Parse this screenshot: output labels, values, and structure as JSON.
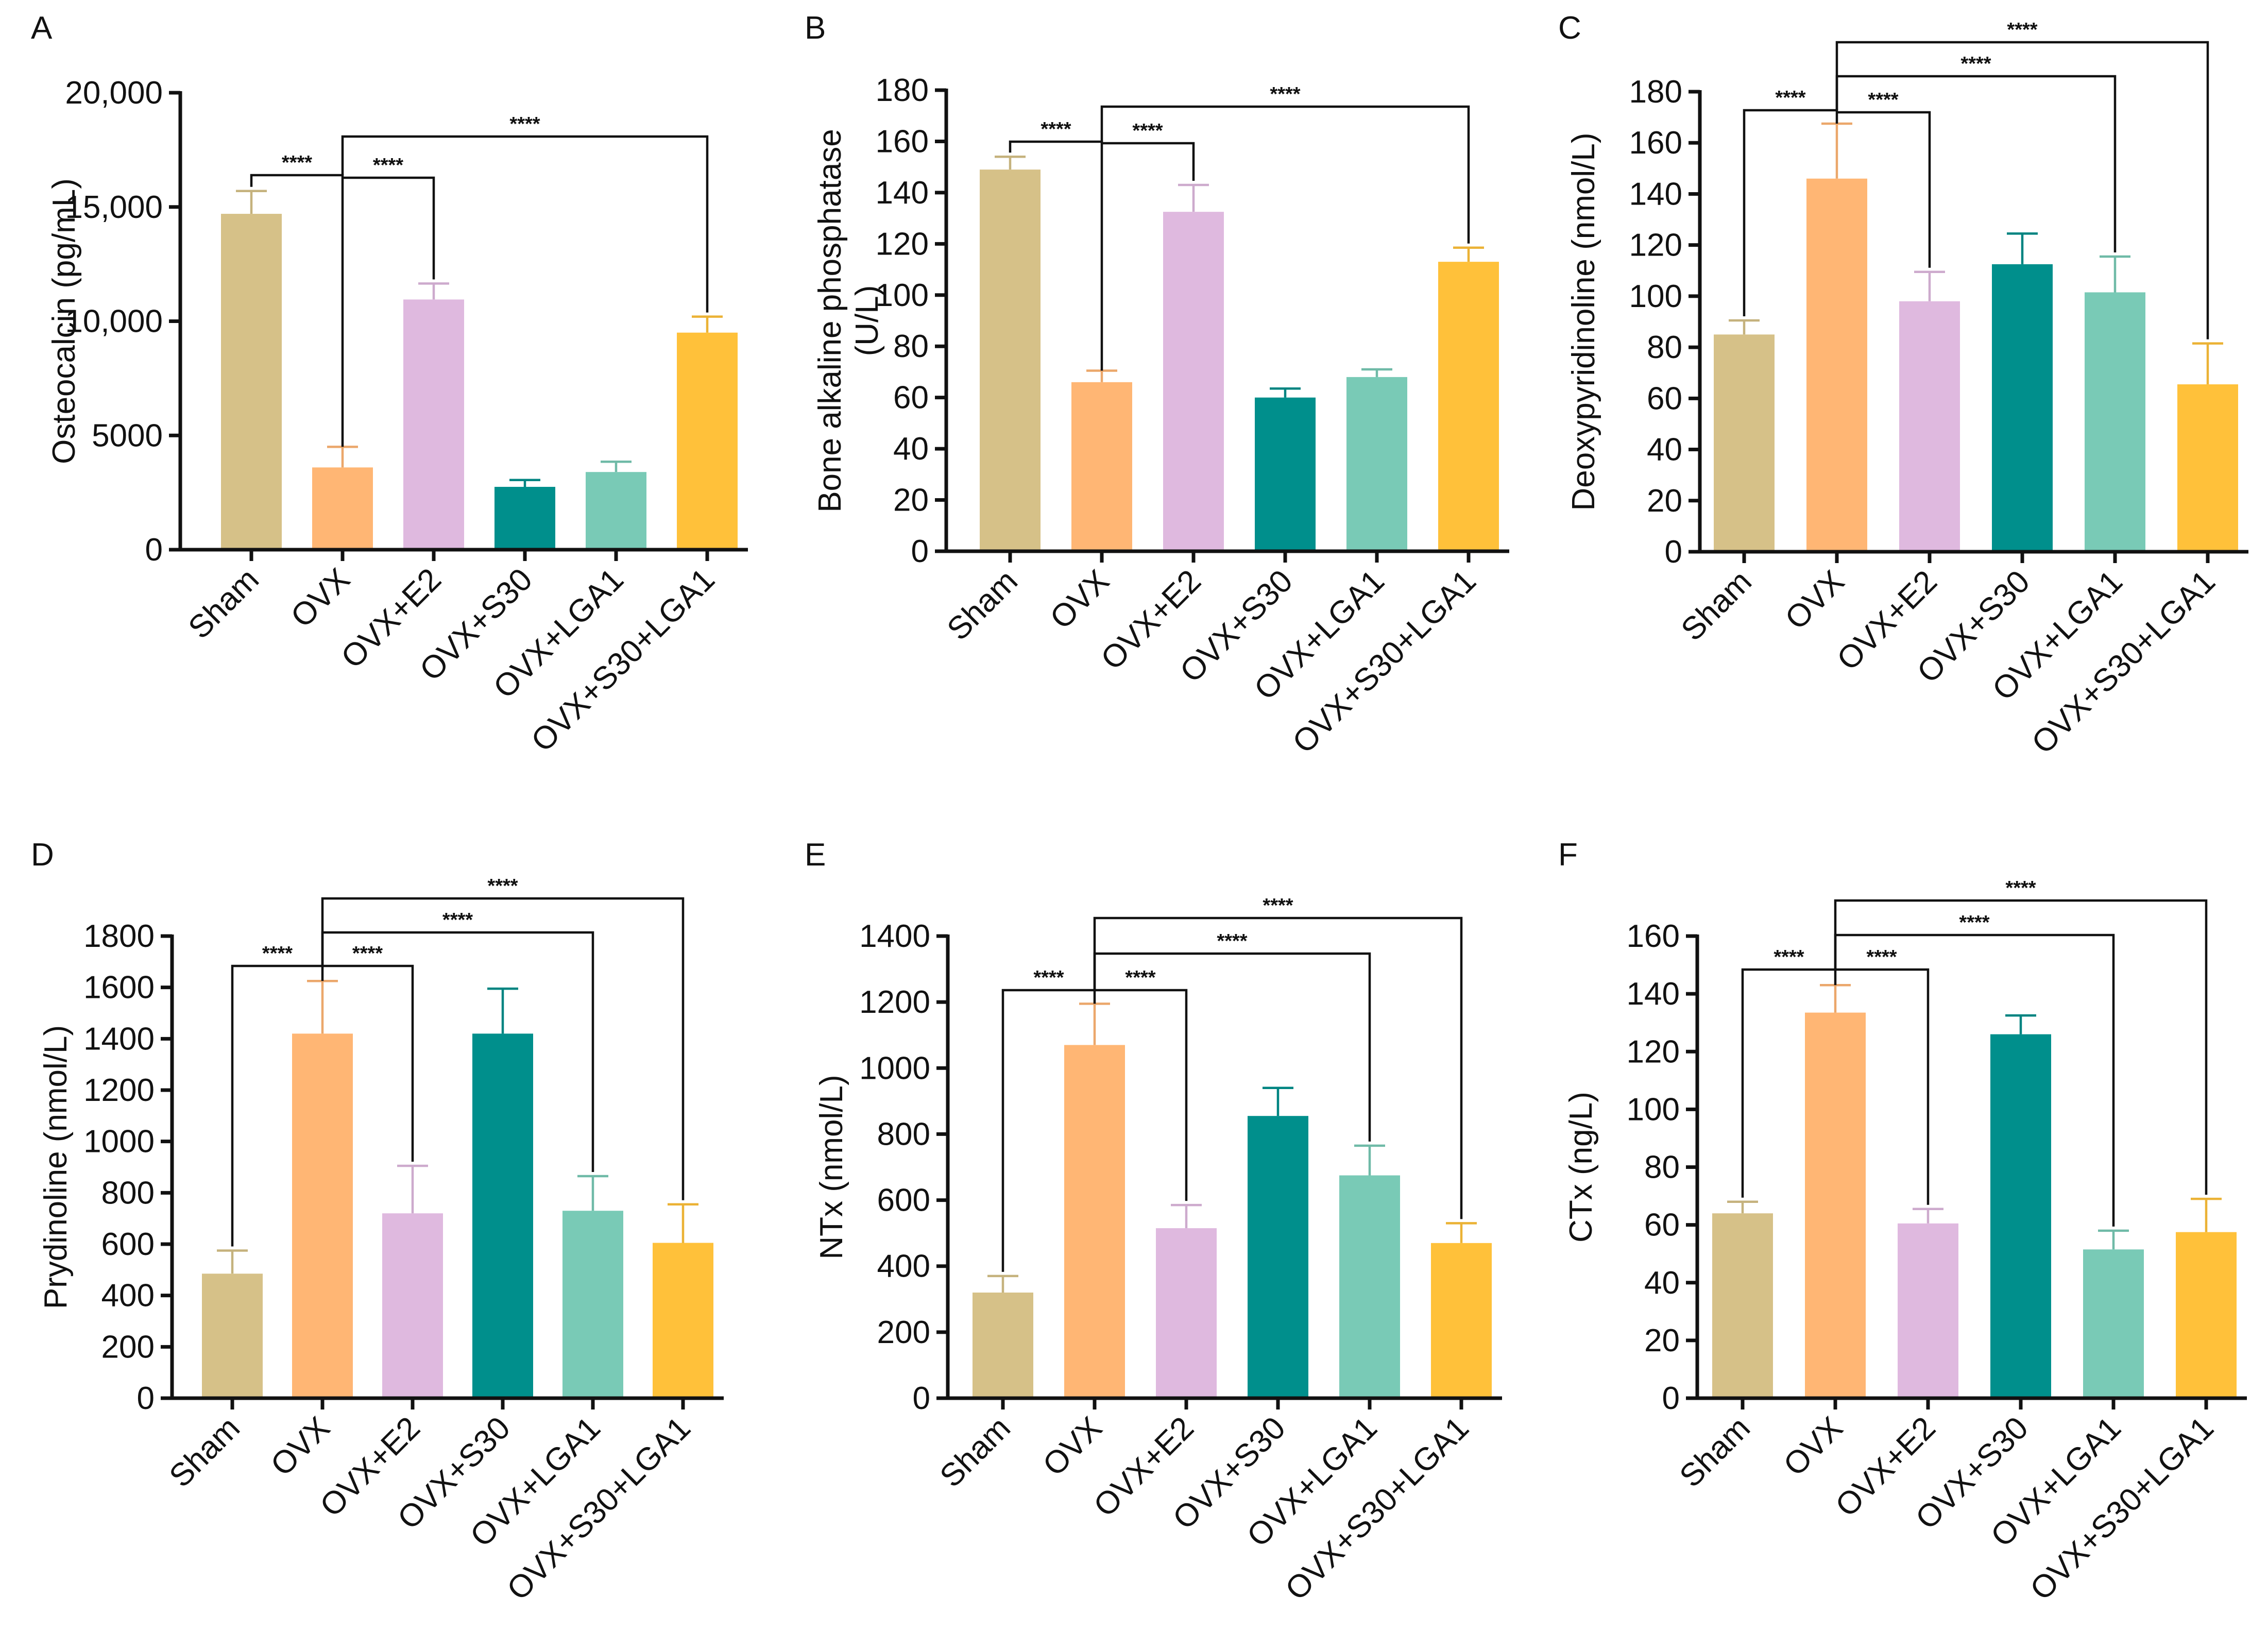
{
  "figure": {
    "categories": [
      "Sham",
      "OVX",
      "OVX+E2",
      "OVX+S30",
      "OVX+LGA1",
      "OVX+S30+LGA1"
    ],
    "bar_colors": [
      "#d6c188",
      "#ffb674",
      "#dfb9df",
      "#008f8c",
      "#79cab6",
      "#ffc13a"
    ],
    "significance_label": "****"
  },
  "chart_data": [
    {
      "panel": "A",
      "type": "bar",
      "ylabel": "Osteocalcin (pg/mL)",
      "ylim": [
        0,
        20000
      ],
      "yticks": [
        0,
        5000,
        10000,
        15000,
        20000
      ],
      "ytick_labels": [
        "0",
        "5000",
        "10,000",
        "15,000",
        "20,000"
      ],
      "categories": [
        "Sham",
        "OVX",
        "OVX+E2",
        "OVX+S30",
        "OVX+LGA1",
        "OVX+S30+LGA1"
      ],
      "values": [
        14700,
        3600,
        10950,
        2750,
        3400,
        9500
      ],
      "errors": [
        1000,
        900,
        700,
        300,
        450,
        700
      ],
      "significance": [
        {
          "from": 1,
          "to": 0,
          "label": "****"
        },
        {
          "from": 1,
          "to": 2,
          "label": "****"
        },
        {
          "from": 1,
          "to": 5,
          "label": "****"
        }
      ]
    },
    {
      "panel": "B",
      "type": "bar",
      "ylabel": [
        "Bone alkaline phosphatase",
        "(U/L)"
      ],
      "ylim": [
        0,
        180
      ],
      "yticks": [
        0,
        20,
        40,
        60,
        80,
        100,
        120,
        140,
        160,
        180
      ],
      "ytick_labels": [
        "0",
        "20",
        "40",
        "60",
        "80",
        "100",
        "120",
        "140",
        "160",
        "180"
      ],
      "categories": [
        "Sham",
        "OVX",
        "OVX+E2",
        "OVX+S30",
        "OVX+LGA1",
        "OVX+S30+LGA1"
      ],
      "values": [
        149,
        66,
        132.5,
        60,
        68,
        113
      ],
      "errors": [
        5,
        4.5,
        10.5,
        3.5,
        3,
        5.5
      ],
      "significance": [
        {
          "from": 1,
          "to": 0,
          "label": "****"
        },
        {
          "from": 1,
          "to": 2,
          "label": "****"
        },
        {
          "from": 1,
          "to": 5,
          "label": "****"
        }
      ]
    },
    {
      "panel": "C",
      "type": "bar",
      "ylabel": "Deoxypyridinoline (nmol/L)",
      "ylim": [
        0,
        180
      ],
      "yticks": [
        0,
        20,
        40,
        60,
        80,
        100,
        120,
        140,
        160,
        180
      ],
      "ytick_labels": [
        "0",
        "20",
        "40",
        "60",
        "80",
        "100",
        "120",
        "140",
        "160",
        "180"
      ],
      "categories": [
        "Sham",
        "OVX",
        "OVX+E2",
        "OVX+S30",
        "OVX+LGA1",
        "OVX+S30+LGA1"
      ],
      "values": [
        85,
        146,
        98,
        112.5,
        101.5,
        65.5
      ],
      "errors": [
        5.5,
        21.5,
        11.5,
        12,
        14,
        16
      ],
      "significance": [
        {
          "from": 1,
          "to": 0,
          "label": "****"
        },
        {
          "from": 1,
          "to": 2,
          "label": "****"
        },
        {
          "from": 1,
          "to": 4,
          "label": "****"
        },
        {
          "from": 1,
          "to": 5,
          "label": "****"
        }
      ]
    },
    {
      "panel": "D",
      "type": "bar",
      "ylabel": "Prydinoline (nmol/L)",
      "ylim": [
        0,
        1800
      ],
      "yticks": [
        0,
        200,
        400,
        600,
        800,
        1000,
        1200,
        1400,
        1600,
        1800
      ],
      "ytick_labels": [
        "0",
        "200",
        "400",
        "600",
        "800",
        "1000",
        "1200",
        "1400",
        "1600",
        "1800"
      ],
      "categories": [
        "Sham",
        "OVX",
        "OVX+E2",
        "OVX+S30",
        "OVX+LGA1",
        "OVX+S30+LGA1"
      ],
      "values": [
        485,
        1420,
        720,
        1420,
        730,
        605
      ],
      "errors": [
        90,
        205,
        185,
        175,
        135,
        150
      ],
      "significance": [
        {
          "from": 1,
          "to": 0,
          "label": "****"
        },
        {
          "from": 1,
          "to": 2,
          "label": "****"
        },
        {
          "from": 1,
          "to": 4,
          "label": "****"
        },
        {
          "from": 1,
          "to": 5,
          "label": "****"
        }
      ]
    },
    {
      "panel": "E",
      "type": "bar",
      "ylabel": "NTx (nmol/L)",
      "ylim": [
        0,
        1400
      ],
      "yticks": [
        0,
        200,
        400,
        600,
        800,
        1000,
        1200,
        1400
      ],
      "ytick_labels": [
        "0",
        "200",
        "400",
        "600",
        "800",
        "1000",
        "1200",
        "1400"
      ],
      "categories": [
        "Sham",
        "OVX",
        "OVX+E2",
        "OVX+S30",
        "OVX+LGA1",
        "OVX+S30+LGA1"
      ],
      "values": [
        320,
        1070,
        515,
        855,
        675,
        470
      ],
      "errors": [
        50,
        125,
        70,
        85,
        90,
        60
      ],
      "significance": [
        {
          "from": 1,
          "to": 0,
          "label": "****"
        },
        {
          "from": 1,
          "to": 2,
          "label": "****"
        },
        {
          "from": 1,
          "to": 4,
          "label": "****"
        },
        {
          "from": 1,
          "to": 5,
          "label": "****"
        }
      ]
    },
    {
      "panel": "F",
      "type": "bar",
      "ylabel": "CTx (ng/L)",
      "ylim": [
        0,
        160
      ],
      "yticks": [
        0,
        20,
        40,
        60,
        80,
        100,
        120,
        140,
        160
      ],
      "ytick_labels": [
        "0",
        "20",
        "40",
        "60",
        "80",
        "100",
        "120",
        "140",
        "160"
      ],
      "categories": [
        "Sham",
        "OVX",
        "OVX+E2",
        "OVX+S30",
        "OVX+LGA1",
        "OVX+S30+LGA1"
      ],
      "values": [
        64,
        133.5,
        60.5,
        126,
        51.5,
        57.5
      ],
      "errors": [
        4,
        9.5,
        5,
        6.5,
        6.5,
        11.5
      ],
      "significance": [
        {
          "from": 1,
          "to": 0,
          "label": "****"
        },
        {
          "from": 1,
          "to": 2,
          "label": "****"
        },
        {
          "from": 1,
          "to": 4,
          "label": "****"
        },
        {
          "from": 1,
          "to": 5,
          "label": "****"
        }
      ]
    }
  ]
}
